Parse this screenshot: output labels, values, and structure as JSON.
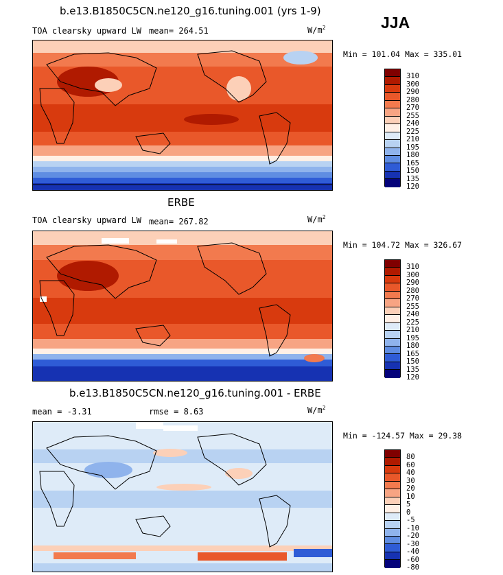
{
  "season_label": "JJA",
  "units": "W/m",
  "units_sup": "2",
  "panels": [
    {
      "title": "b.e13.B1850C5CN.ne120_g16.tuning.001 (yrs 1-9)",
      "subtitle": "TOA clearsky upward LW",
      "stats": "mean= 264.51",
      "minmax": "Min = 101.04 Max = 335.01",
      "colorbar_ticks": [
        "310",
        "300",
        "290",
        "280",
        "270",
        "255",
        "240",
        "225",
        "210",
        "195",
        "180",
        "165",
        "150",
        "135",
        "120"
      ]
    },
    {
      "title": "ERBE",
      "subtitle": "TOA clearsky upward LW",
      "stats": "mean= 267.82",
      "minmax": "Min = 104.72 Max = 326.67",
      "colorbar_ticks": [
        "310",
        "300",
        "290",
        "280",
        "270",
        "255",
        "240",
        "225",
        "210",
        "195",
        "180",
        "165",
        "150",
        "135",
        "120"
      ]
    },
    {
      "title": "b.e13.B1850C5CN.ne120_g16.tuning.001 - ERBE",
      "subtitle": "mean =  -3.31",
      "stats": "rmse =   8.63",
      "minmax": "Min = -124.57 Max =  29.38",
      "colorbar_ticks": [
        "80",
        "60",
        "40",
        "30",
        "20",
        "10",
        "5",
        "0",
        "-5",
        "-10",
        "-20",
        "-30",
        "-40",
        "-60",
        "-80"
      ]
    }
  ],
  "colors": {
    "abs_scale": [
      "#800000",
      "#b01a00",
      "#d83a0e",
      "#e9582a",
      "#f27a4e",
      "#f7a483",
      "#fcd0b8",
      "#fff0e6",
      "#deebf8",
      "#b8d2f2",
      "#8fb3ec",
      "#5f8de2",
      "#2f5cd6",
      "#1632b2",
      "#04027a"
    ],
    "diff_scale": [
      "#800000",
      "#b01a00",
      "#d83a0e",
      "#e9582a",
      "#f27a4e",
      "#f7a483",
      "#fcd0b8",
      "#fff0e6",
      "#deebf8",
      "#b8d2f2",
      "#8fb3ec",
      "#5f8de2",
      "#2f5cd6",
      "#1632b2",
      "#04027a"
    ]
  }
}
